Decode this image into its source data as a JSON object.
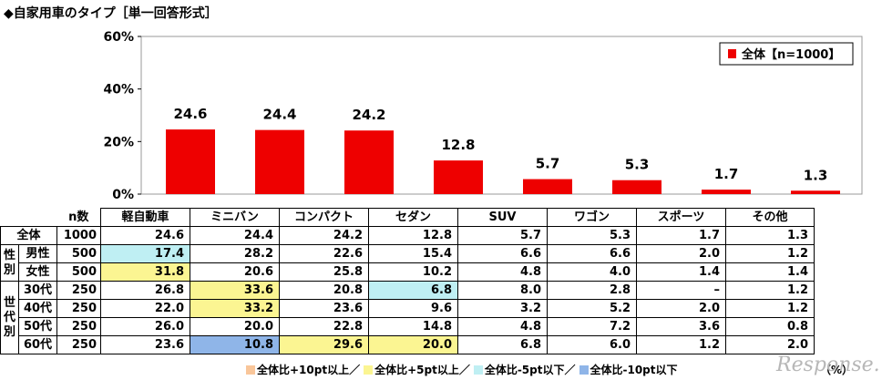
{
  "title": "◆自家用車のタイプ［単一回答形式］",
  "chart_data": {
    "type": "bar",
    "categories": [
      "軽自動車",
      "ミニバン",
      "コンパクト",
      "セダン",
      "SUV",
      "ワゴン",
      "スポーツ",
      "その他"
    ],
    "series": [
      {
        "name": "全体【n=1000】",
        "values": [
          24.6,
          24.4,
          24.2,
          12.8,
          5.7,
          5.3,
          1.7,
          1.3
        ],
        "color": "#ee0000"
      }
    ],
    "value_labels": [
      "24.6",
      "24.4",
      "24.2",
      "12.8",
      "5.7",
      "5.3",
      "1.7",
      "1.3"
    ],
    "yticks": [
      "0%",
      "20%",
      "40%",
      "60%"
    ],
    "ylim": [
      0,
      60
    ],
    "legend_position": "top-right"
  },
  "table": {
    "n_header": "n数",
    "rows": [
      {
        "group": "",
        "label": "全体",
        "n": "1000",
        "values": [
          "24.6",
          "24.4",
          "24.2",
          "12.8",
          "5.7",
          "5.3",
          "1.7",
          "1.3"
        ],
        "marks": [
          "",
          "",
          "",
          "",
          "",
          "",
          "",
          ""
        ]
      },
      {
        "group": "性別",
        "label": "男性",
        "n": "500",
        "values": [
          "17.4",
          "28.2",
          "22.6",
          "15.4",
          "6.6",
          "6.6",
          "2.0",
          "1.2"
        ],
        "marks": [
          "cyan",
          "",
          "",
          "",
          "",
          "",
          "",
          ""
        ]
      },
      {
        "group": "",
        "label": "女性",
        "n": "500",
        "values": [
          "31.8",
          "20.6",
          "25.8",
          "10.2",
          "4.8",
          "4.0",
          "1.4",
          "1.4"
        ],
        "marks": [
          "yellow",
          "",
          "",
          "",
          "",
          "",
          "",
          ""
        ]
      },
      {
        "group": "世代別",
        "label": "30代",
        "n": "250",
        "values": [
          "26.8",
          "33.6",
          "20.8",
          "6.8",
          "8.0",
          "2.8",
          "–",
          "1.2"
        ],
        "marks": [
          "",
          "yellow",
          "",
          "cyan",
          "",
          "",
          "",
          ""
        ]
      },
      {
        "group": "",
        "label": "40代",
        "n": "250",
        "values": [
          "22.0",
          "33.2",
          "23.6",
          "9.6",
          "3.2",
          "5.2",
          "2.0",
          "1.2"
        ],
        "marks": [
          "",
          "yellow",
          "",
          "",
          "",
          "",
          "",
          ""
        ]
      },
      {
        "group": "",
        "label": "50代",
        "n": "250",
        "values": [
          "26.0",
          "20.0",
          "22.8",
          "14.8",
          "4.8",
          "7.2",
          "3.6",
          "0.8"
        ],
        "marks": [
          "",
          "",
          "",
          "",
          "",
          "",
          "",
          ""
        ]
      },
      {
        "group": "",
        "label": "60代",
        "n": "250",
        "values": [
          "23.6",
          "10.8",
          "29.6",
          "20.0",
          "6.8",
          "6.0",
          "1.2",
          "2.0"
        ],
        "marks": [
          "",
          "blue",
          "yellow",
          "yellow",
          "",
          "",
          "",
          ""
        ]
      }
    ]
  },
  "legend_bottom": [
    {
      "text": "全体比+10pt以上／",
      "color": "#f9c69a"
    },
    {
      "text": "全体比+5pt以上／",
      "color": "#fbf592"
    },
    {
      "text": "全体比-5pt以下／",
      "color": "#bfeff3"
    },
    {
      "text": "全体比-10pt以下",
      "color": "#8fb5e8"
    }
  ],
  "unit": "（%）",
  "watermark": "Response."
}
